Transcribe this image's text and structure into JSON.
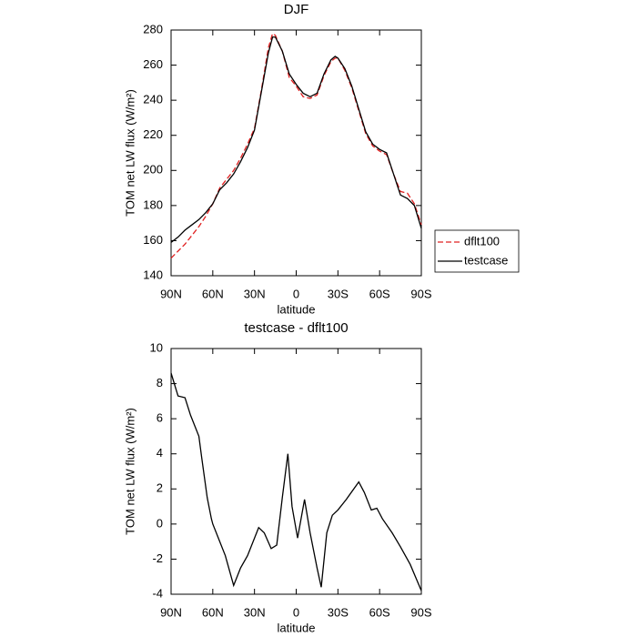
{
  "chart_data": [
    {
      "type": "line",
      "title": "DJF",
      "xlabel": "latitude",
      "ylabel": "TOM net LW flux (W/m²)",
      "x": [
        90,
        85,
        80,
        75,
        70,
        65,
        60,
        55,
        50,
        45,
        40,
        35,
        30,
        25,
        20,
        17,
        15,
        10,
        5,
        0,
        -5,
        -10,
        -15,
        -20,
        -25,
        -28,
        -30,
        -35,
        -40,
        -45,
        -50,
        -55,
        -60,
        -65,
        -70,
        -75,
        -80,
        -85,
        -90
      ],
      "series": [
        {
          "name": "dflt100",
          "color": "#e02020",
          "dash": true,
          "values": [
            150,
            154,
            158,
            163,
            168,
            174,
            181,
            190,
            195,
            200,
            207,
            215,
            224,
            246,
            270,
            278,
            277,
            268,
            253,
            248,
            242,
            241,
            243,
            254,
            262,
            264,
            264,
            257,
            247,
            234,
            221,
            214,
            211,
            209,
            198,
            188,
            187,
            181,
            169
          ]
        },
        {
          "name": "testcase",
          "color": "#000000",
          "dash": false,
          "values": [
            159,
            162,
            166,
            169,
            172,
            176,
            181,
            189,
            193,
            198,
            205,
            213,
            223,
            245,
            267,
            276,
            276,
            268,
            255,
            249,
            244,
            242,
            244,
            255,
            263,
            265,
            264,
            258,
            248,
            235,
            222,
            215,
            212,
            210,
            198,
            186,
            184,
            180,
            167
          ]
        }
      ],
      "xlim": [
        90,
        -90
      ],
      "xticks": [
        {
          "value": 90,
          "label": "90N"
        },
        {
          "value": 60,
          "label": "60N"
        },
        {
          "value": 30,
          "label": "30N"
        },
        0,
        {
          "value": -30,
          "label": "30S"
        },
        {
          "value": -60,
          "label": "60S"
        },
        {
          "value": -90,
          "label": "90S"
        }
      ],
      "ylim": [
        140,
        280
      ],
      "yticks": [
        140,
        160,
        180,
        200,
        220,
        240,
        260,
        280
      ],
      "legend": "right"
    },
    {
      "type": "line",
      "title": "testcase - dflt100",
      "xlabel": "latitude",
      "ylabel": "TOM net LW flux (W/m²)",
      "x": [
        90,
        85,
        80,
        76,
        70,
        68,
        64,
        61,
        60,
        56,
        51,
        45,
        40,
        35,
        27,
        23,
        18,
        14,
        10,
        6,
        3,
        -1,
        -6,
        -10,
        -15,
        -18,
        -22,
        -26,
        -30,
        -36,
        -45,
        -49,
        -54,
        -58,
        -62,
        -69,
        -75,
        -82,
        -90
      ],
      "series": [
        {
          "name": "testcase - dflt100",
          "color": "#000000",
          "dash": false,
          "values": [
            8.6,
            7.3,
            7.2,
            6.2,
            5.0,
            3.8,
            1.5,
            0.3,
            0,
            -0.8,
            -1.8,
            -3.5,
            -2.5,
            -1.8,
            -0.2,
            -0.5,
            -1.4,
            -1.2,
            1.5,
            4.0,
            1.0,
            -0.8,
            1.4,
            -0.5,
            -2.5,
            -3.6,
            -0.5,
            0.5,
            0.8,
            1.4,
            2.4,
            1.8,
            0.8,
            0.9,
            0.3,
            -0.5,
            -1.3,
            -2.3,
            -3.8
          ]
        }
      ],
      "xlim": [
        90,
        -90
      ],
      "xticks": [
        {
          "value": 90,
          "label": "90N"
        },
        {
          "value": 60,
          "label": "60N"
        },
        {
          "value": 30,
          "label": "30N"
        },
        0,
        {
          "value": -30,
          "label": "30S"
        },
        {
          "value": -60,
          "label": "60S"
        },
        {
          "value": -90,
          "label": "90S"
        }
      ],
      "ylim": [
        -4,
        10
      ],
      "yticks": [
        -4,
        -2,
        0,
        2,
        4,
        6,
        8,
        10
      ]
    }
  ]
}
